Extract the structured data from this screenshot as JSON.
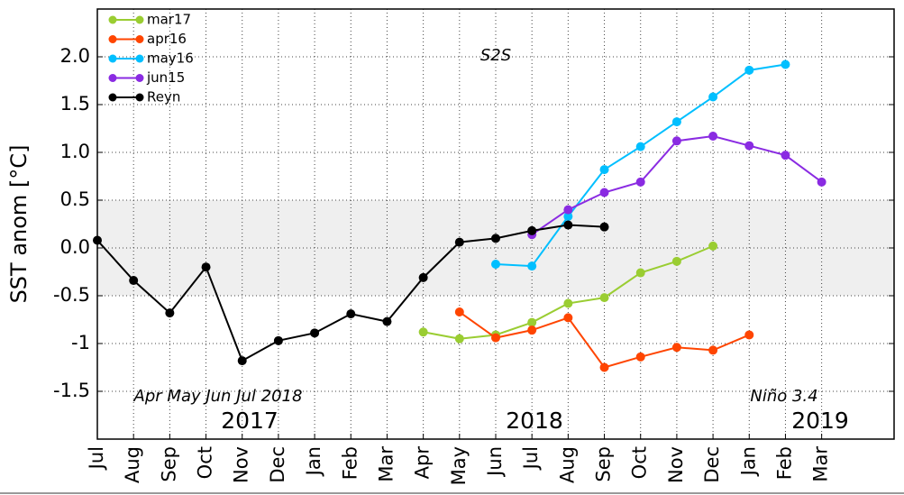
{
  "chart_data": {
    "type": "line",
    "ylabel": "SST anom [°C]",
    "annotations": [
      "S2S",
      "Apr May Jun Jul 2018",
      "Niño 3.4"
    ],
    "years": [
      "2017",
      "2018",
      "2019"
    ],
    "categories": [
      "Jul",
      "Aug",
      "Sep",
      "Oct",
      "Nov",
      "Dec",
      "Jan",
      "Feb",
      "Mar",
      "Apr",
      "May",
      "Jun",
      "Jul",
      "Aug",
      "Sep",
      "Oct",
      "Nov",
      "Dec",
      "Jan",
      "Feb",
      "Mar"
    ],
    "series": [
      {
        "name": "mar17",
        "color": "#9acd32",
        "values": [
          null,
          null,
          null,
          null,
          null,
          null,
          null,
          null,
          null,
          -0.88,
          -0.95,
          -0.91,
          -0.78,
          -0.58,
          -0.52,
          -0.26,
          -0.14,
          0.02,
          null,
          null,
          null
        ]
      },
      {
        "name": "apr16",
        "color": "#ff4500",
        "values": [
          null,
          null,
          null,
          null,
          null,
          null,
          null,
          null,
          null,
          null,
          -0.67,
          -0.94,
          -0.86,
          -0.73,
          -1.25,
          -1.14,
          -1.04,
          -1.07,
          -0.91,
          null,
          null
        ]
      },
      {
        "name": "may16",
        "color": "#00bfff",
        "values": [
          null,
          null,
          null,
          null,
          null,
          null,
          null,
          null,
          null,
          null,
          null,
          -0.17,
          -0.19,
          0.33,
          0.82,
          1.06,
          1.32,
          1.58,
          1.86,
          1.92,
          null
        ]
      },
      {
        "name": "jun15",
        "color": "#8a2be2",
        "values": [
          null,
          null,
          null,
          null,
          null,
          null,
          null,
          null,
          null,
          null,
          null,
          null,
          0.14,
          0.4,
          0.58,
          0.69,
          1.12,
          1.17,
          1.07,
          0.97,
          0.69
        ]
      },
      {
        "name": "Reyn",
        "color": "#000000",
        "values": [
          0.08,
          -0.34,
          -0.68,
          -0.2,
          -1.18,
          -0.97,
          -0.89,
          -0.69,
          -0.77,
          -0.31,
          0.06,
          0.1,
          0.18,
          0.24,
          0.22,
          null,
          null,
          null,
          null,
          null,
          null
        ]
      }
    ],
    "band": [
      -0.5,
      0.5
    ],
    "ylim": [
      -2.0,
      2.5
    ],
    "yticks": [
      -1.5,
      -1,
      -0.5,
      {
        "value": 0,
        "label": "0.0"
      },
      0.5,
      {
        "value": 1,
        "label": "1.0"
      },
      1.5,
      {
        "value": 2,
        "label": "2.0"
      }
    ],
    "grid": true,
    "legend": "upper left"
  }
}
